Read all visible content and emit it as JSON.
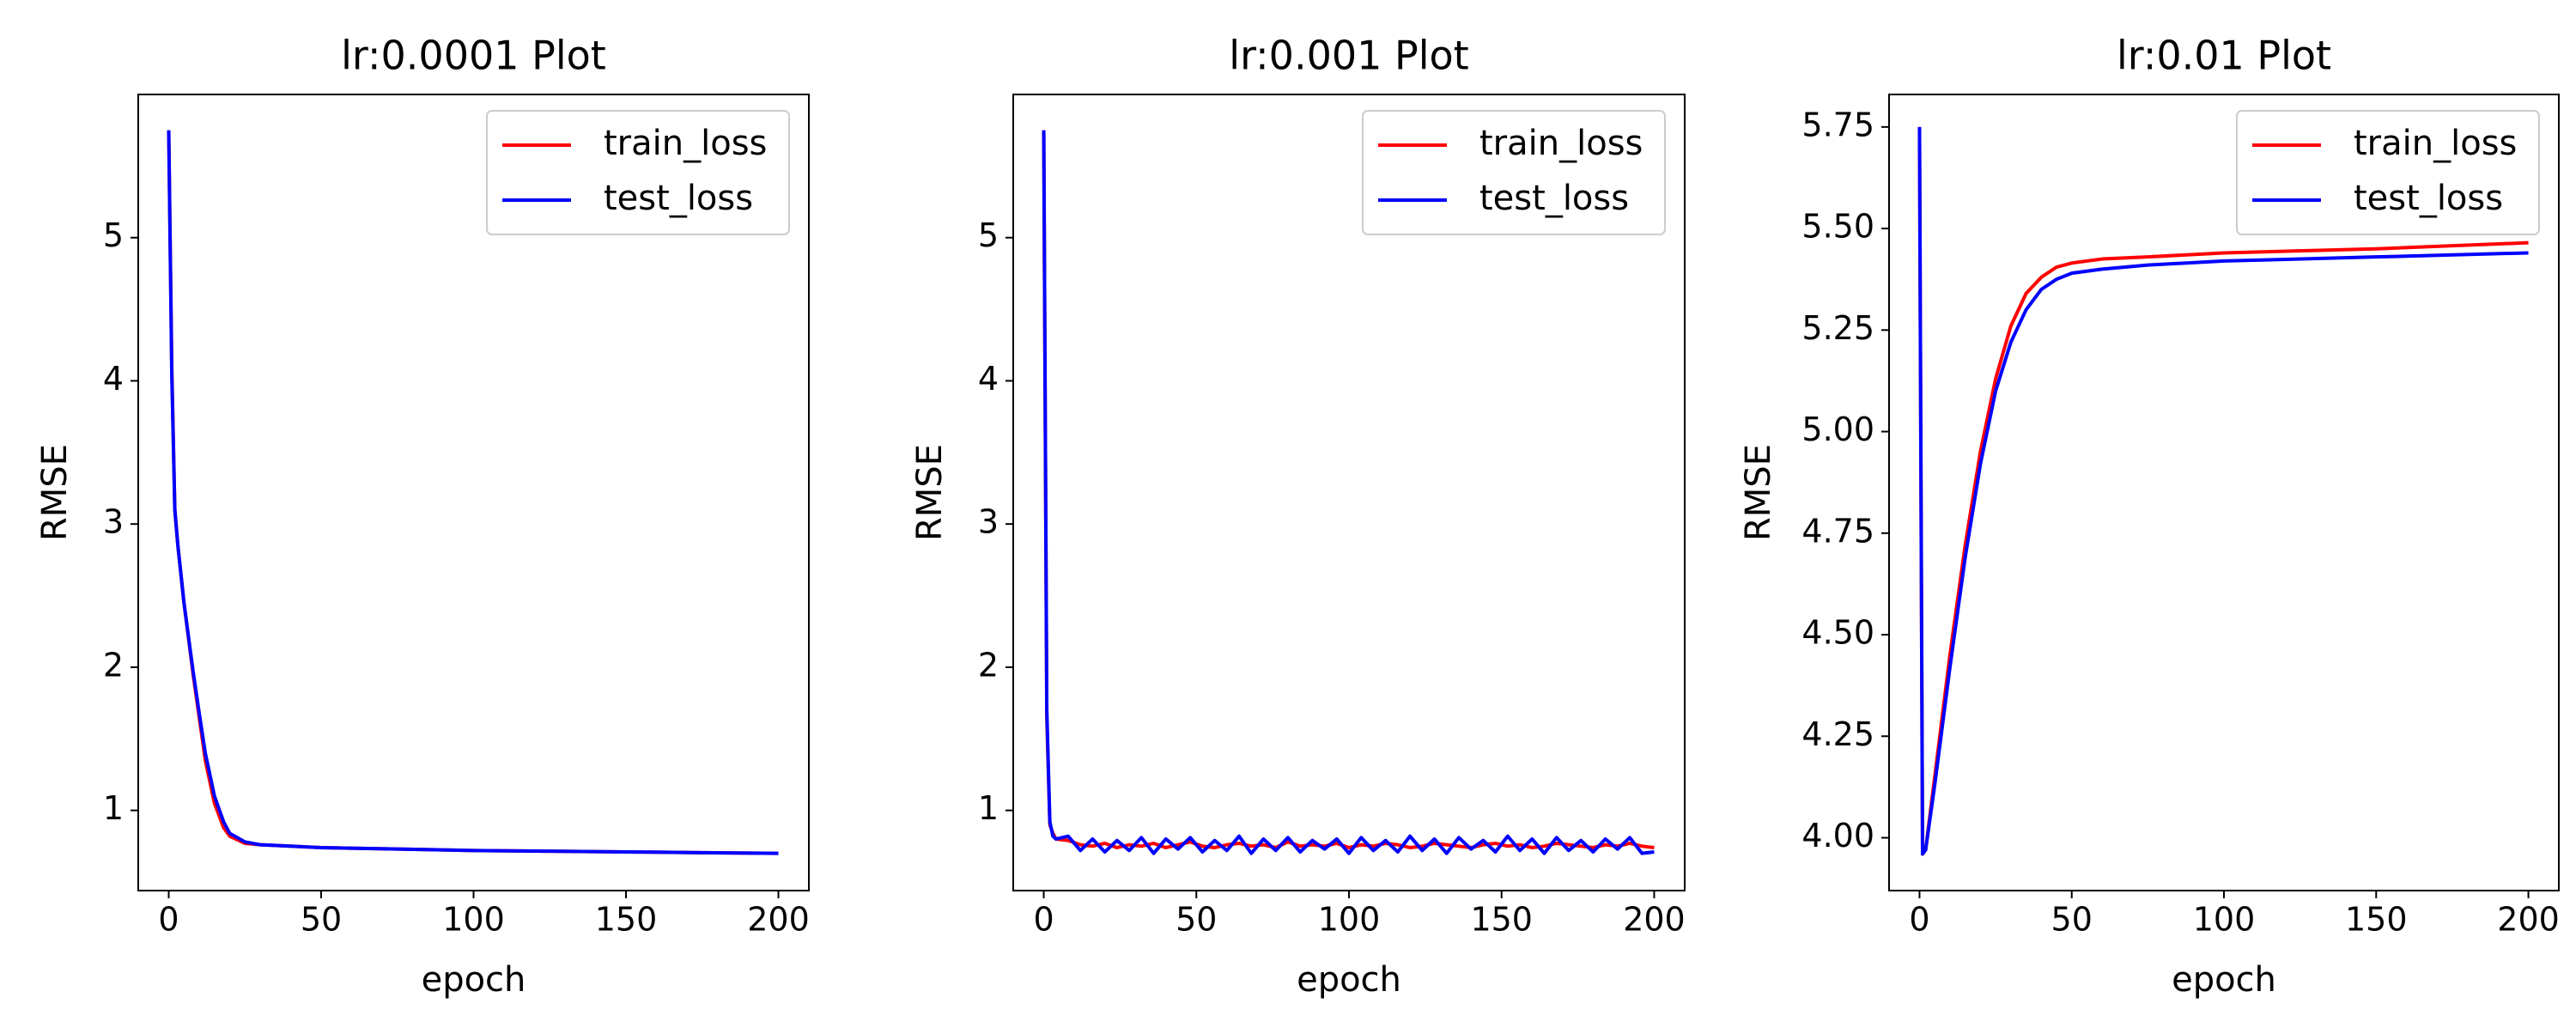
{
  "chart_data": [
    {
      "type": "line",
      "title": "lr:0.0001 Plot",
      "xlabel": "epoch",
      "ylabel": "RMSE",
      "x": [
        0,
        1,
        2,
        3,
        5,
        8,
        10,
        12,
        15,
        18,
        20,
        25,
        30,
        40,
        50,
        75,
        100,
        125,
        150,
        175,
        200
      ],
      "series": [
        {
          "name": "train_loss",
          "color": "#ff0000",
          "values": [
            5.75,
            4.1,
            3.1,
            2.85,
            2.45,
            1.95,
            1.65,
            1.35,
            1.05,
            0.88,
            0.82,
            0.77,
            0.76,
            0.75,
            0.74,
            0.73,
            0.72,
            0.715,
            0.71,
            0.705,
            0.7
          ]
        },
        {
          "name": "test_loss",
          "color": "#0000ff",
          "values": [
            5.75,
            4.05,
            3.1,
            2.85,
            2.45,
            1.97,
            1.68,
            1.4,
            1.1,
            0.92,
            0.84,
            0.78,
            0.76,
            0.75,
            0.74,
            0.73,
            0.72,
            0.715,
            0.71,
            0.705,
            0.7
          ]
        }
      ],
      "xlim": [
        -10,
        210
      ],
      "ylim": [
        0.44,
        6.0
      ],
      "xticks": [
        0,
        50,
        100,
        150,
        200
      ],
      "yticks": [
        1,
        2,
        3,
        4,
        5
      ],
      "legend": "upper right"
    },
    {
      "type": "line",
      "title": "lr:0.001 Plot",
      "xlabel": "epoch",
      "ylabel": "RMSE",
      "x": [
        0,
        1,
        2,
        3,
        4,
        8,
        12,
        16,
        20,
        24,
        28,
        32,
        36,
        40,
        44,
        48,
        52,
        56,
        60,
        64,
        68,
        72,
        76,
        80,
        84,
        88,
        92,
        96,
        100,
        104,
        108,
        112,
        116,
        120,
        124,
        128,
        132,
        136,
        140,
        144,
        148,
        152,
        156,
        160,
        164,
        168,
        172,
        176,
        180,
        184,
        188,
        192,
        196,
        200
      ],
      "series": [
        {
          "name": "train_loss",
          "color": "#ff0000",
          "values": [
            5.75,
            1.65,
            0.9,
            0.84,
            0.8,
            0.79,
            0.76,
            0.75,
            0.77,
            0.74,
            0.76,
            0.75,
            0.77,
            0.74,
            0.76,
            0.78,
            0.75,
            0.74,
            0.76,
            0.77,
            0.75,
            0.76,
            0.74,
            0.78,
            0.75,
            0.76,
            0.75,
            0.77,
            0.74,
            0.76,
            0.75,
            0.77,
            0.76,
            0.74,
            0.75,
            0.77,
            0.76,
            0.75,
            0.74,
            0.76,
            0.77,
            0.75,
            0.76,
            0.74,
            0.75,
            0.77,
            0.76,
            0.75,
            0.74,
            0.76,
            0.75,
            0.77,
            0.75,
            0.74
          ]
        },
        {
          "name": "test_loss",
          "color": "#0000ff",
          "values": [
            5.75,
            1.7,
            0.92,
            0.82,
            0.8,
            0.82,
            0.72,
            0.8,
            0.71,
            0.79,
            0.72,
            0.81,
            0.7,
            0.8,
            0.73,
            0.81,
            0.71,
            0.79,
            0.72,
            0.82,
            0.7,
            0.8,
            0.72,
            0.81,
            0.71,
            0.79,
            0.73,
            0.8,
            0.7,
            0.81,
            0.72,
            0.79,
            0.71,
            0.82,
            0.72,
            0.8,
            0.7,
            0.81,
            0.73,
            0.79,
            0.71,
            0.82,
            0.72,
            0.8,
            0.7,
            0.81,
            0.72,
            0.79,
            0.71,
            0.8,
            0.73,
            0.81,
            0.7,
            0.71
          ]
        }
      ],
      "xlim": [
        -10,
        210
      ],
      "ylim": [
        0.44,
        6.0
      ],
      "xticks": [
        0,
        50,
        100,
        150,
        200
      ],
      "yticks": [
        1,
        2,
        3,
        4,
        5
      ],
      "legend": "upper right"
    },
    {
      "type": "line",
      "title": "lr:0.01 Plot",
      "xlabel": "epoch",
      "ylabel": "RMSE",
      "x": [
        0,
        1,
        2,
        5,
        10,
        15,
        20,
        25,
        30,
        35,
        40,
        45,
        50,
        60,
        75,
        100,
        150,
        200
      ],
      "series": [
        {
          "name": "train_loss",
          "color": "#ff0000",
          "values": [
            5.75,
            3.96,
            3.97,
            4.15,
            4.45,
            4.72,
            4.95,
            5.13,
            5.26,
            5.34,
            5.38,
            5.405,
            5.415,
            5.425,
            5.43,
            5.44,
            5.45,
            5.465
          ]
        },
        {
          "name": "test_loss",
          "color": "#0000ff",
          "values": [
            5.75,
            3.96,
            3.97,
            4.13,
            4.42,
            4.69,
            4.92,
            5.1,
            5.22,
            5.3,
            5.35,
            5.375,
            5.39,
            5.4,
            5.41,
            5.42,
            5.43,
            5.44
          ]
        }
      ],
      "xlim": [
        -10,
        210
      ],
      "ylim": [
        3.87,
        5.83
      ],
      "xticks": [
        0,
        50,
        100,
        150,
        200
      ],
      "yticks": [
        {
          "value": 4,
          "label": "4.00"
        },
        4.25,
        {
          "value": 4.5,
          "label": "4.50"
        },
        4.75,
        {
          "value": 5,
          "label": "5.00"
        },
        5.25,
        {
          "value": 5.5,
          "label": "5.50"
        },
        5.75
      ],
      "legend": "upper right"
    }
  ]
}
